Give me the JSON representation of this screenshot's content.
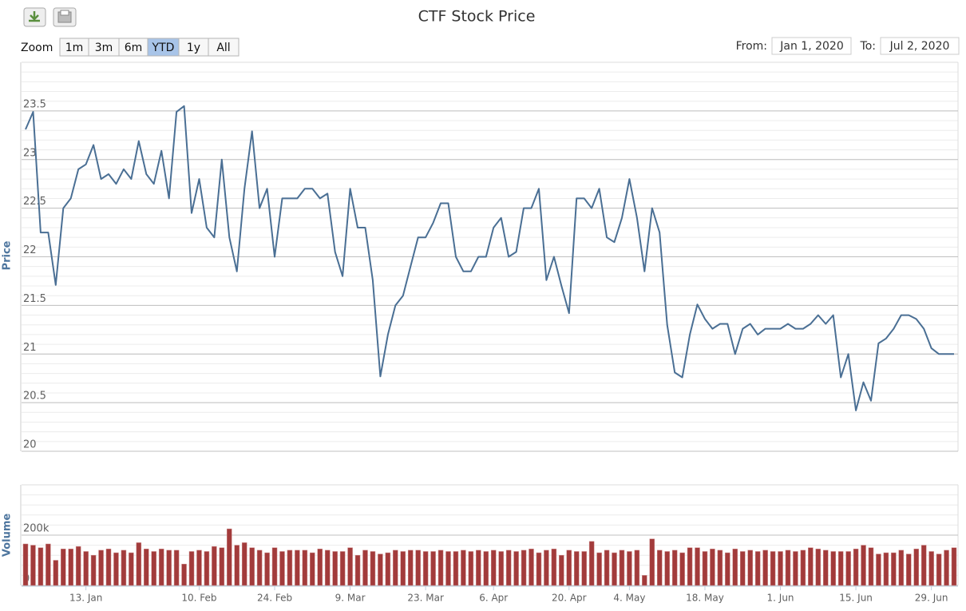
{
  "chart_data": [
    {
      "type": "line",
      "title": "CTF Stock Price",
      "ylabel": "Price",
      "color": "#4a6f94",
      "ylim": [
        20,
        24
      ],
      "yticks": [
        20,
        20.5,
        21,
        21.5,
        22,
        22.5,
        23,
        23.5
      ],
      "grid": true,
      "values": [
        23.31,
        23.49,
        22.25,
        22.25,
        21.71,
        22.5,
        22.6,
        22.9,
        22.95,
        23.15,
        22.8,
        22.85,
        22.75,
        22.9,
        22.8,
        23.19,
        22.85,
        22.75,
        23.09,
        22.6,
        23.49,
        23.55,
        22.45,
        22.8,
        22.3,
        22.2,
        23.0,
        22.2,
        21.85,
        22.7,
        23.29,
        22.5,
        22.7,
        22.0,
        22.6,
        22.6,
        22.6,
        22.7,
        22.7,
        22.6,
        22.65,
        22.05,
        21.8,
        22.7,
        22.3,
        22.3,
        21.76,
        20.77,
        21.2,
        21.5,
        21.6,
        21.9,
        22.2,
        22.2,
        22.35,
        22.55,
        22.55,
        22.0,
        21.85,
        21.85,
        22.0,
        22.0,
        22.3,
        22.4,
        22.0,
        22.05,
        22.5,
        22.5,
        22.7,
        21.76,
        22.0,
        21.7,
        21.42,
        22.6,
        22.6,
        22.5,
        22.7,
        22.2,
        22.15,
        22.4,
        22.8,
        22.4,
        21.85,
        22.5,
        22.25,
        21.3,
        20.81,
        20.76,
        21.2,
        21.51,
        21.36,
        21.26,
        21.31,
        21.31,
        21.0,
        21.26,
        21.31,
        21.2,
        21.26,
        21.26,
        21.26,
        21.31,
        21.26,
        21.26,
        21.31,
        21.4,
        21.31,
        21.4,
        20.76,
        21.0,
        20.42,
        20.71,
        20.52,
        21.11,
        21.16,
        21.26,
        21.4,
        21.4,
        21.36,
        21.26,
        21.06,
        21.0,
        21.0,
        21.0
      ]
    },
    {
      "type": "bar",
      "ylabel": "Volume",
      "color": "#a23b3b",
      "ylim": [
        0,
        400000
      ],
      "yticks": [
        {
          "value": 0,
          "label": "0k"
        },
        {
          "value": 200000,
          "label": "200k"
        }
      ],
      "grid": true,
      "categories": [
        null,
        null,
        null,
        null,
        null,
        null,
        null,
        null,
        "13. Jan",
        null,
        null,
        null,
        null,
        null,
        null,
        null,
        null,
        null,
        null,
        null,
        null,
        null,
        null,
        "10. Feb",
        null,
        null,
        null,
        null,
        null,
        null,
        null,
        null,
        null,
        "24. Feb",
        null,
        null,
        null,
        null,
        null,
        null,
        null,
        null,
        null,
        "9. Mar",
        null,
        null,
        null,
        null,
        null,
        null,
        null,
        null,
        null,
        "23. Mar",
        null,
        null,
        null,
        null,
        null,
        null,
        null,
        null,
        "6. Apr",
        null,
        null,
        null,
        null,
        null,
        null,
        null,
        null,
        null,
        "20. Apr",
        null,
        null,
        null,
        null,
        null,
        null,
        null,
        "4. May",
        null,
        null,
        null,
        null,
        null,
        null,
        null,
        null,
        null,
        "18. May",
        null,
        null,
        null,
        null,
        null,
        null,
        null,
        null,
        null,
        "1. Jun",
        null,
        null,
        null,
        null,
        null,
        null,
        null,
        null,
        null,
        "15. Jun",
        null,
        null,
        null,
        null,
        null,
        null,
        null,
        null,
        null,
        "29. Jun",
        null,
        null,
        null
      ],
      "values": [
        165000,
        160000,
        150000,
        165000,
        100000,
        145000,
        145000,
        155000,
        135000,
        120000,
        140000,
        145000,
        130000,
        140000,
        130000,
        170000,
        145000,
        135000,
        145000,
        140000,
        140000,
        85000,
        135000,
        140000,
        135000,
        155000,
        150000,
        225000,
        160000,
        170000,
        150000,
        140000,
        130000,
        150000,
        135000,
        140000,
        140000,
        140000,
        130000,
        145000,
        140000,
        135000,
        135000,
        150000,
        120000,
        140000,
        135000,
        125000,
        130000,
        140000,
        135000,
        140000,
        140000,
        135000,
        135000,
        140000,
        135000,
        135000,
        140000,
        135000,
        140000,
        135000,
        140000,
        135000,
        140000,
        135000,
        140000,
        145000,
        130000,
        140000,
        145000,
        120000,
        140000,
        135000,
        135000,
        175000,
        130000,
        140000,
        130000,
        140000,
        135000,
        140000,
        40000,
        185000,
        140000,
        135000,
        140000,
        130000,
        150000,
        150000,
        135000,
        145000,
        140000,
        130000,
        145000,
        135000,
        140000,
        135000,
        140000,
        135000,
        135000,
        140000,
        135000,
        140000,
        150000,
        145000,
        140000,
        135000,
        135000,
        135000,
        145000,
        160000,
        150000,
        125000,
        130000,
        130000,
        140000,
        125000,
        145000,
        160000,
        135000,
        125000,
        140000,
        150000
      ]
    }
  ],
  "zoom": {
    "label": "Zoom",
    "buttons": [
      "1m",
      "3m",
      "6m",
      "YTD",
      "1y",
      "All"
    ],
    "selected": 3
  },
  "range": {
    "from_label": "From:",
    "from": "Jan 1, 2020",
    "to_label": "To:",
    "to": "Jul 2, 2020"
  }
}
